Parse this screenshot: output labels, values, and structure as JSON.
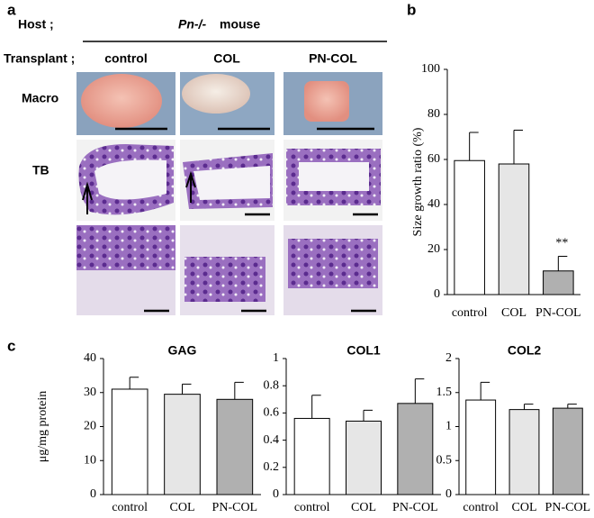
{
  "panel_labels": [
    "a",
    "b",
    "c"
  ],
  "figure_a": {
    "host_label": "Host ;",
    "host_strain": "Pn-/-",
    "host_species": "mouse",
    "transplant_label": "Transplant ;",
    "columns": [
      "control",
      "COL",
      "PN-COL"
    ],
    "rows": [
      "Macro",
      "TB"
    ]
  },
  "chart_data": [
    {
      "type": "bar",
      "ylabel": "Size growth ratio (%)",
      "categories": [
        "control",
        "COL",
        "PN-COL"
      ],
      "values": [
        59.5,
        58,
        10.5
      ],
      "errors": [
        12.5,
        15,
        6.5
      ],
      "value_annotations": [
        null,
        null,
        "**"
      ],
      "colors": [
        "#ffffff",
        "#e6e6e6",
        "#b0b0b0"
      ],
      "ylim": [
        0,
        100
      ],
      "yticks": [
        0,
        20,
        40,
        60,
        80,
        100
      ]
    },
    {
      "type": "bar",
      "title": "GAG",
      "ylabel": "μg/mg protein",
      "categories": [
        "control",
        "COL",
        "PN-COL"
      ],
      "values": [
        31,
        29.5,
        28
      ],
      "errors": [
        3.5,
        3,
        5
      ],
      "colors": [
        "#ffffff",
        "#e6e6e6",
        "#b0b0b0"
      ],
      "ylim": [
        0,
        40
      ],
      "yticks": [
        0,
        10,
        20,
        30,
        40
      ]
    },
    {
      "type": "bar",
      "title": "COL1",
      "categories": [
        "control",
        "COL",
        "PN-COL"
      ],
      "values": [
        0.56,
        0.54,
        0.67
      ],
      "errors": [
        0.17,
        0.08,
        0.18
      ],
      "colors": [
        "#ffffff",
        "#e6e6e6",
        "#b0b0b0"
      ],
      "ylim": [
        0,
        1
      ],
      "yticks": [
        0,
        0.2,
        0.4,
        0.6,
        0.8,
        1
      ]
    },
    {
      "type": "bar",
      "title": "COL2",
      "categories": [
        "control",
        "COL",
        "PN-COL"
      ],
      "values": [
        1.39,
        1.25,
        1.27
      ],
      "errors": [
        0.26,
        0.08,
        0.06
      ],
      "colors": [
        "#ffffff",
        "#e6e6e6",
        "#b0b0b0"
      ],
      "ylim": [
        0,
        2
      ],
      "yticks": [
        0,
        0.5,
        1,
        1.5,
        2
      ]
    }
  ]
}
